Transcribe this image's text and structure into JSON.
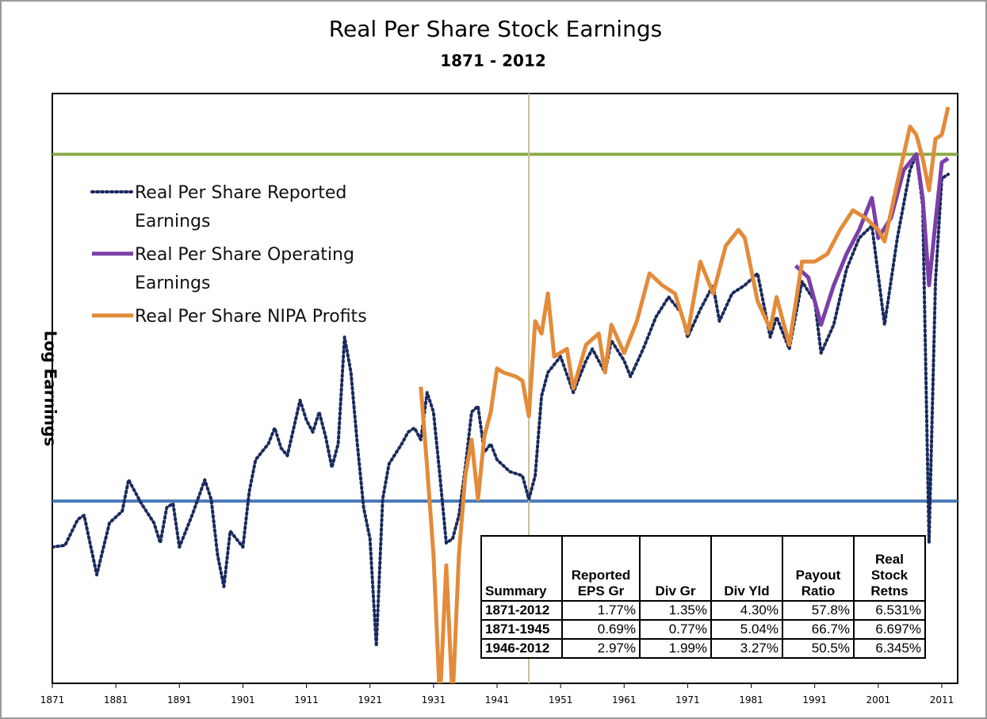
{
  "chart_data": {
    "type": "line",
    "title": "Real Per Share Stock Earnings",
    "subtitle": "1871 - 2012",
    "ylabel": "Log Earnings",
    "xlim": [
      1871,
      2013.5
    ],
    "xticks": [
      1871,
      1881,
      1891,
      1901,
      1911,
      1921,
      1931,
      1941,
      1951,
      1961,
      1971,
      1981,
      1991,
      2001,
      2011
    ],
    "ylim": [
      0,
      100
    ],
    "hlines": [
      {
        "value": 89.7,
        "color": "#8aab4a"
      },
      {
        "value": 30.9,
        "color": "#4a7ab8"
      }
    ],
    "vline": {
      "value": 1946,
      "color": "#c9bf98"
    },
    "series": [
      {
        "name": "Real Per Share Reported Earnings",
        "color": "#1a2a5e",
        "style": "dotted",
        "x": [
          1871,
          1873,
          1875,
          1876,
          1878,
          1880,
          1882,
          1883,
          1885,
          1887,
          1888,
          1889,
          1890,
          1891,
          1893,
          1895,
          1896,
          1897,
          1898,
          1899,
          1901,
          1902,
          1903,
          1905,
          1906,
          1907,
          1908,
          1910,
          1911,
          1912,
          1913,
          1914,
          1915,
          1916,
          1917,
          1918,
          1919,
          1920,
          1921,
          1922,
          1923,
          1924,
          1926,
          1927,
          1928,
          1929,
          1930,
          1931,
          1932,
          1933,
          1934,
          1935,
          1936,
          1937,
          1938,
          1939,
          1940,
          1941,
          1943,
          1945,
          1946,
          1947,
          1948,
          1949,
          1951,
          1953,
          1955,
          1956,
          1958,
          1959,
          1961,
          1962,
          1964,
          1966,
          1968,
          1970,
          1971,
          1973,
          1975,
          1976,
          1978,
          1980,
          1982,
          1984,
          1985,
          1987,
          1989,
          1991,
          1992,
          1994,
          1996,
          1998,
          2000,
          2002,
          2004,
          2006,
          2007,
          2008,
          2009,
          2010,
          2011,
          2012
        ],
        "values": [
          23.1,
          23.4,
          27.8,
          28.5,
          18.4,
          27.2,
          29.2,
          34.5,
          30.5,
          27.2,
          23.8,
          29.8,
          30.5,
          23.1,
          28.5,
          34.5,
          31.2,
          21.8,
          16.4,
          25.8,
          23.1,
          32.5,
          37.9,
          40.6,
          43.3,
          39.9,
          38.6,
          48.0,
          44.6,
          42.6,
          46.0,
          41.9,
          36.6,
          40.6,
          58.7,
          52.7,
          40.6,
          29.8,
          24.5,
          6.3,
          31.2,
          37.2,
          40.6,
          42.6,
          43.3,
          41.3,
          49.3,
          46.0,
          35.2,
          23.8,
          24.5,
          28.5,
          36.6,
          46.0,
          47.0,
          39.2,
          40.6,
          37.9,
          35.9,
          35.2,
          31.2,
          35.2,
          48.7,
          52.7,
          55.4,
          49.3,
          54.7,
          56.7,
          52.7,
          58.1,
          54.7,
          52.0,
          56.7,
          62.1,
          65.5,
          62.8,
          58.7,
          63.4,
          67.5,
          61.4,
          66.1,
          67.5,
          69.5,
          58.7,
          62.1,
          56.7,
          68.1,
          64.8,
          56.0,
          60.8,
          70.2,
          75.5,
          77.6,
          60.8,
          75.5,
          87.0,
          89.7,
          80.9,
          23.8,
          68.1,
          85.6,
          86.3
        ]
      },
      {
        "name": "Real Per Share Operating Earnings",
        "color": "#7b3fa8",
        "style": "solid",
        "x": [
          1988,
          1990,
          1992,
          1994,
          1996,
          1998,
          2000,
          2001,
          2003,
          2005,
          2007,
          2008,
          2009,
          2010,
          2011,
          2012
        ],
        "values": [
          70.8,
          68.8,
          60.8,
          67.5,
          72.8,
          76.9,
          82.3,
          75.5,
          78.9,
          87.0,
          89.7,
          82.3,
          67.5,
          78.2,
          88.3,
          89.0
        ]
      },
      {
        "name": "Real Per Share NIPA Profits",
        "color": "#e38b3a",
        "style": "solid",
        "x": [
          1929,
          1930,
          1931,
          1932,
          1933,
          1934,
          1935,
          1936,
          1937,
          1938,
          1939,
          1940,
          1941,
          1942,
          1944,
          1945,
          1946,
          1947,
          1948,
          1949,
          1950,
          1952,
          1953,
          1955,
          1957,
          1958,
          1959,
          1961,
          1963,
          1965,
          1967,
          1969,
          1971,
          1973,
          1975,
          1977,
          1979,
          1980,
          1982,
          1984,
          1985,
          1987,
          1989,
          1991,
          1993,
          1995,
          1997,
          1999,
          2001,
          2002,
          2004,
          2006,
          2007,
          2008,
          2009,
          2010,
          2011,
          2012
        ],
        "values": [
          50.3,
          36.6,
          21.8,
          -3,
          20,
          -3,
          21.8,
          35.2,
          41.3,
          31.2,
          41.9,
          46.0,
          53.4,
          52.7,
          52.0,
          51.3,
          45.3,
          61.4,
          59.3,
          66.1,
          55.4,
          56.7,
          50.0,
          57.4,
          59.3,
          52.7,
          60.8,
          56.0,
          61.4,
          69.5,
          67.5,
          66.1,
          59.3,
          71.5,
          66.1,
          74.2,
          76.9,
          75.5,
          64.8,
          60.1,
          65.5,
          57.4,
          71.5,
          71.5,
          72.8,
          76.9,
          80.2,
          78.9,
          76.9,
          74.9,
          84.9,
          94.4,
          93.0,
          89.0,
          83.6,
          92.3,
          93.0,
          97.7
        ]
      }
    ]
  },
  "summary_table": {
    "header": [
      "Summary",
      "Reported EPS Gr",
      "Div Gr",
      "Div Yld",
      "Payout Ratio",
      "Real Stock Retns"
    ],
    "rows": [
      [
        "1871-2012",
        "1.77%",
        "1.35%",
        "4.30%",
        "57.8%",
        "6.531%"
      ],
      [
        "1871-1945",
        "0.69%",
        "0.77%",
        "5.04%",
        "66.7%",
        "6.697%"
      ],
      [
        "1946-2012",
        "2.97%",
        "1.99%",
        "3.27%",
        "50.5%",
        "6.345%"
      ]
    ]
  }
}
